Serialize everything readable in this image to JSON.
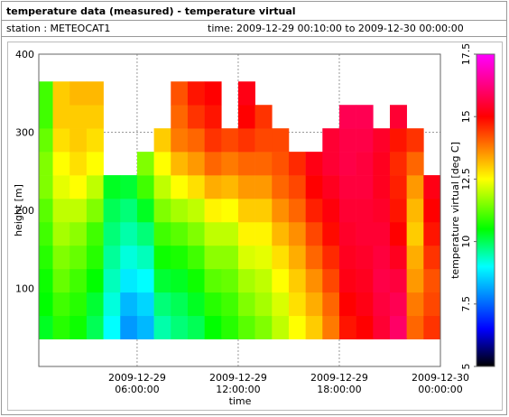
{
  "chart_data": {
    "type": "heatmap",
    "title": "temperature data (measured) - temperature virtual",
    "station": "station : METEOCAT1",
    "period": "time: 2009-12-29 00:10:00 to 2009-12-30 00:00:00",
    "xlabel": "time",
    "ylabel": "height [m]",
    "colorbar_label": "temperature virtual [deg C]",
    "x": [
      "2009-12-29 00:10:00",
      "2009-12-29 01:00:00",
      "2009-12-29 02:00:00",
      "2009-12-29 03:00:00",
      "2009-12-29 04:00:00",
      "2009-12-29 05:00:00",
      "2009-12-29 06:00:00",
      "2009-12-29 07:00:00",
      "2009-12-29 08:00:00",
      "2009-12-29 09:00:00",
      "2009-12-29 10:00:00",
      "2009-12-29 11:00:00",
      "2009-12-29 12:00:00",
      "2009-12-29 13:00:00",
      "2009-12-29 14:00:00",
      "2009-12-29 15:00:00",
      "2009-12-29 16:00:00",
      "2009-12-29 17:00:00",
      "2009-12-29 18:00:00",
      "2009-12-29 19:00:00",
      "2009-12-29 20:00:00",
      "2009-12-29 21:00:00",
      "2009-12-29 22:00:00",
      "2009-12-29 23:00:00"
    ],
    "y": [
      50,
      80,
      110,
      140,
      170,
      200,
      230,
      260,
      290,
      320,
      350
    ],
    "z": [
      [
        10.3,
        10.5,
        10.6,
        10.8,
        11,
        11.2,
        11.5,
        11.5,
        11.3,
        11,
        11
      ],
      [
        10.8,
        11,
        11.3,
        11.5,
        11.8,
        12,
        12.3,
        12.5,
        12.8,
        13,
        13
      ],
      [
        10.6,
        10.8,
        11,
        11.3,
        11.6,
        12,
        12.5,
        12.8,
        13,
        13,
        13.2
      ],
      [
        10,
        10.2,
        10.5,
        10.8,
        11,
        11.5,
        12,
        12.5,
        12.8,
        13,
        13.2
      ],
      [
        9,
        9.2,
        9.4,
        9.6,
        9.8,
        10,
        10.3,
        null,
        null,
        null,
        null
      ],
      [
        8,
        8.3,
        8.8,
        9.2,
        9.5,
        9.8,
        10.2,
        null,
        null,
        null,
        null
      ],
      [
        8.3,
        8.6,
        9,
        9.4,
        9.8,
        10.3,
        11,
        11.5,
        null,
        null,
        null
      ],
      [
        9.5,
        9.8,
        10.2,
        10.6,
        11,
        11.5,
        12,
        12.5,
        13,
        null,
        null
      ],
      [
        9.8,
        10,
        10.3,
        10.7,
        11.2,
        11.8,
        12.5,
        13.2,
        13.8,
        14,
        14.2
      ],
      [
        10,
        10.3,
        10.6,
        11,
        11.5,
        12,
        12.8,
        13.5,
        14,
        14.5,
        14.8
      ],
      [
        10.5,
        10.8,
        11.2,
        11.6,
        12,
        12.6,
        13.3,
        14,
        14.5,
        14.8,
        15
      ],
      [
        10.8,
        11,
        11.3,
        11.6,
        12,
        12.5,
        13.2,
        13.8,
        14.3,
        null,
        null
      ],
      [
        11.2,
        11.5,
        11.8,
        12.2,
        12.6,
        13,
        13.5,
        14,
        14.5,
        15,
        15.2
      ],
      [
        11.5,
        11.8,
        12,
        12.3,
        12.6,
        13,
        13.5,
        14,
        14.3,
        14.5,
        null
      ],
      [
        12,
        12.2,
        12.5,
        12.8,
        13.2,
        13.6,
        14,
        14.2,
        14.3,
        null,
        null
      ],
      [
        12.5,
        12.8,
        13,
        13.3,
        13.6,
        14,
        14.3,
        14.6,
        null,
        null,
        null
      ],
      [
        13,
        13.3,
        13.6,
        14,
        14.3,
        14.7,
        15,
        15.2,
        null,
        null,
        null
      ],
      [
        13.8,
        14,
        14.3,
        14.6,
        14.9,
        15.1,
        15.3,
        15.5,
        15.5,
        null,
        null
      ],
      [
        14.8,
        15,
        15.2,
        15.3,
        15.4,
        15.5,
        15.6,
        15.7,
        15.7,
        15.8,
        null
      ],
      [
        15,
        15.2,
        15.3,
        15.4,
        15.5,
        15.5,
        15.6,
        15.6,
        15.7,
        15.8,
        null
      ],
      [
        15.5,
        15.6,
        15.7,
        15.6,
        15.5,
        15.4,
        15.3,
        15.3,
        15.4,
        null,
        null
      ],
      [
        16,
        15.8,
        15.6,
        15.3,
        15,
        14.8,
        14.7,
        14.6,
        14.8,
        15.5,
        null
      ],
      [
        14,
        13.8,
        13.5,
        13.3,
        13,
        13.2,
        13.5,
        14,
        14.5,
        null,
        null
      ],
      [
        14.5,
        14.3,
        14.2,
        14.5,
        14.8,
        15,
        15.2,
        null,
        null,
        null,
        null
      ]
    ],
    "cell_height": 30,
    "xlim": [
      "2009-12-29 00:10:00",
      "2009-12-30 00:00:00"
    ],
    "xticks": [
      "2009-12-29 06:00:00",
      "2009-12-29 12:00:00",
      "2009-12-29 18:00:00",
      "2009-12-30 00:00:00"
    ],
    "ylim": [
      0,
      400
    ],
    "yticks": [
      100,
      200,
      300,
      400
    ],
    "zlim": [
      5,
      17.5
    ],
    "zticks": [
      5,
      7.5,
      10,
      12.5,
      15,
      17.5
    ],
    "colorscale": [
      [
        5,
        "#000000"
      ],
      [
        6.5,
        "#0000ff"
      ],
      [
        9,
        "#00ffff"
      ],
      [
        10.5,
        "#00ff00"
      ],
      [
        12.5,
        "#ffff00"
      ],
      [
        15,
        "#ff0000"
      ],
      [
        17.5,
        "#ff00ff"
      ]
    ],
    "grid": true
  }
}
